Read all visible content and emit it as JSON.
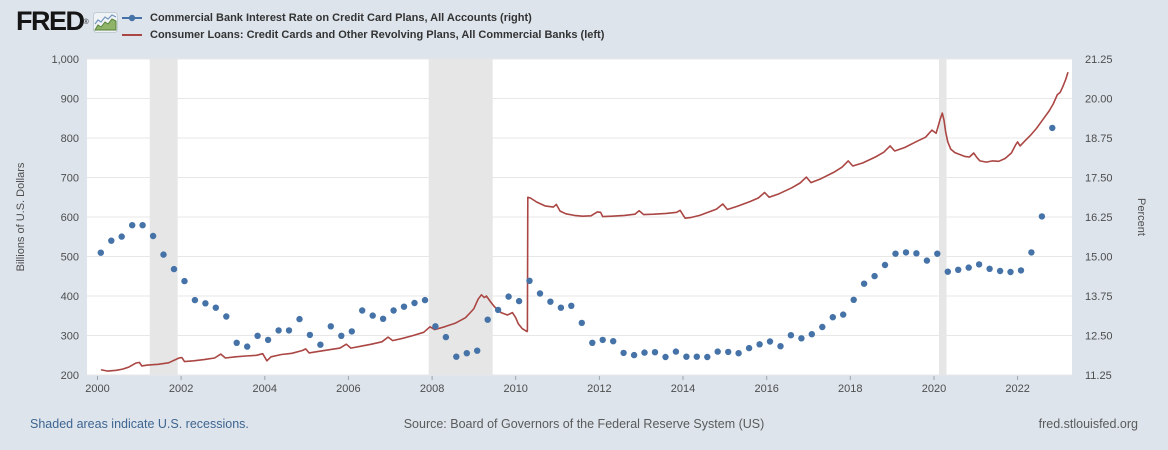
{
  "header": {
    "logo_text": "FRED",
    "logo_reg": "®",
    "legend": [
      {
        "label": "Commercial Bank Interest Rate on Credit Card Plans, All Accounts (right)",
        "marker": "line-dot",
        "color": "#4572a7"
      },
      {
        "label": "Consumer Loans: Credit Cards and Other Revolving Plans, All Commercial Banks (left)",
        "marker": "line",
        "color": "#aa4643"
      }
    ]
  },
  "footer": {
    "recession_note": "Shaded areas indicate U.S. recessions.",
    "source": "Source: Board of Governors of the Federal Reserve System (US)",
    "site": "fred.stlouisfed.org"
  },
  "colors": {
    "background": "#dde4ec",
    "plot_background": "#ffffff",
    "gridline": "#e7e7e7",
    "recession_band": "#e6e6e6",
    "blue_series": "#4572a7",
    "red_series": "#aa4643",
    "axis_text": "#4d4d4d",
    "x_tick_mark": "#9aa5b1"
  },
  "chart_data": {
    "type": "line",
    "title": "",
    "grid": "horizontal-only",
    "legend_position": "top-left",
    "x_axis": {
      "min": 1999.75,
      "max": 2023.3,
      "tick_years": [
        2000,
        2002,
        2004,
        2006,
        2008,
        2010,
        2012,
        2014,
        2016,
        2018,
        2020,
        2022
      ]
    },
    "left_axis": {
      "title": "Billions of U.S. Dollars",
      "min": 200,
      "max": 1000,
      "tick_values": [
        200,
        300,
        400,
        500,
        600,
        700,
        800,
        900,
        1000
      ],
      "tick_labels": [
        "200",
        "300",
        "400",
        "500",
        "600",
        "700",
        "800",
        "900",
        "1,000"
      ]
    },
    "right_axis": {
      "title": "Percent",
      "min": 11.25,
      "max": 21.25,
      "tick_values": [
        11.25,
        12.5,
        13.75,
        15.0,
        16.25,
        17.5,
        18.75,
        20.0,
        21.25
      ],
      "tick_labels": [
        "11.25",
        "12.50",
        "13.75",
        "15.00",
        "16.25",
        "17.50",
        "18.75",
        "20.00",
        "21.25"
      ]
    },
    "recessions": [
      [
        2001.25,
        2001.92
      ],
      [
        2007.92,
        2009.45
      ],
      [
        2020.12,
        2020.3
      ]
    ],
    "series": [
      {
        "name": "Commercial Bank Interest Rate on Credit Card Plans, All Accounts",
        "axis": "right",
        "style": "scatter",
        "color": "#4572a7",
        "marker_radius": 3.2,
        "points": [
          [
            2000.08,
            15.12
          ],
          [
            2000.33,
            15.5
          ],
          [
            2000.58,
            15.63
          ],
          [
            2000.83,
            15.99
          ],
          [
            2001.08,
            15.99
          ],
          [
            2001.33,
            15.65
          ],
          [
            2001.58,
            15.06
          ],
          [
            2001.83,
            14.6
          ],
          [
            2002.08,
            14.22
          ],
          [
            2002.33,
            13.62
          ],
          [
            2002.58,
            13.52
          ],
          [
            2002.83,
            13.38
          ],
          [
            2003.08,
            13.1
          ],
          [
            2003.33,
            12.27
          ],
          [
            2003.58,
            12.15
          ],
          [
            2003.83,
            12.49
          ],
          [
            2004.08,
            12.36
          ],
          [
            2004.33,
            12.66
          ],
          [
            2004.58,
            12.66
          ],
          [
            2004.83,
            13.02
          ],
          [
            2005.08,
            12.52
          ],
          [
            2005.33,
            12.21
          ],
          [
            2005.58,
            12.79
          ],
          [
            2005.83,
            12.49
          ],
          [
            2006.08,
            12.63
          ],
          [
            2006.33,
            13.29
          ],
          [
            2006.58,
            13.13
          ],
          [
            2006.83,
            13.03
          ],
          [
            2007.08,
            13.29
          ],
          [
            2007.33,
            13.41
          ],
          [
            2007.58,
            13.53
          ],
          [
            2007.83,
            13.62
          ],
          [
            2008.08,
            12.79
          ],
          [
            2008.33,
            12.45
          ],
          [
            2008.58,
            11.83
          ],
          [
            2008.83,
            11.94
          ],
          [
            2009.08,
            12.02
          ],
          [
            2009.33,
            13.0
          ],
          [
            2009.58,
            13.31
          ],
          [
            2009.83,
            13.73
          ],
          [
            2010.08,
            13.59
          ],
          [
            2010.33,
            14.23
          ],
          [
            2010.58,
            13.83
          ],
          [
            2010.83,
            13.57
          ],
          [
            2011.08,
            13.38
          ],
          [
            2011.33,
            13.44
          ],
          [
            2011.58,
            12.9
          ],
          [
            2011.83,
            12.27
          ],
          [
            2012.08,
            12.36
          ],
          [
            2012.33,
            12.32
          ],
          [
            2012.58,
            11.95
          ],
          [
            2012.83,
            11.88
          ],
          [
            2013.08,
            11.96
          ],
          [
            2013.33,
            11.97
          ],
          [
            2013.58,
            11.82
          ],
          [
            2013.83,
            11.99
          ],
          [
            2014.08,
            11.83
          ],
          [
            2014.33,
            11.83
          ],
          [
            2014.58,
            11.82
          ],
          [
            2014.83,
            11.99
          ],
          [
            2015.08,
            11.98
          ],
          [
            2015.33,
            11.94
          ],
          [
            2015.58,
            12.1
          ],
          [
            2015.83,
            12.22
          ],
          [
            2016.08,
            12.31
          ],
          [
            2016.33,
            12.16
          ],
          [
            2016.58,
            12.51
          ],
          [
            2016.83,
            12.41
          ],
          [
            2017.08,
            12.54
          ],
          [
            2017.33,
            12.77
          ],
          [
            2017.58,
            13.08
          ],
          [
            2017.83,
            13.16
          ],
          [
            2018.08,
            13.63
          ],
          [
            2018.33,
            14.14
          ],
          [
            2018.58,
            14.38
          ],
          [
            2018.83,
            14.73
          ],
          [
            2019.08,
            15.09
          ],
          [
            2019.33,
            15.13
          ],
          [
            2019.58,
            15.1
          ],
          [
            2019.83,
            14.87
          ],
          [
            2020.08,
            15.09
          ],
          [
            2020.33,
            14.52
          ],
          [
            2020.58,
            14.58
          ],
          [
            2020.83,
            14.65
          ],
          [
            2021.08,
            14.75
          ],
          [
            2021.33,
            14.61
          ],
          [
            2021.58,
            14.54
          ],
          [
            2021.83,
            14.51
          ],
          [
            2022.08,
            14.56
          ],
          [
            2022.33,
            15.13
          ],
          [
            2022.58,
            16.27
          ],
          [
            2022.83,
            19.07
          ]
        ]
      },
      {
        "name": "Consumer Loans: Credit Cards and Other Revolving Plans, All Commercial Banks",
        "axis": "left",
        "style": "line",
        "color": "#aa4643",
        "line_width": 1.6,
        "points": [
          [
            2000.1,
            213
          ],
          [
            2000.25,
            210
          ],
          [
            2000.45,
            212
          ],
          [
            2000.6,
            215
          ],
          [
            2000.75,
            220
          ],
          [
            2000.92,
            230
          ],
          [
            2001.0,
            232
          ],
          [
            2001.06,
            223
          ],
          [
            2001.2,
            225
          ],
          [
            2001.45,
            227
          ],
          [
            2001.7,
            231
          ],
          [
            2001.95,
            243
          ],
          [
            2002.02,
            244
          ],
          [
            2002.08,
            234
          ],
          [
            2002.3,
            236
          ],
          [
            2002.55,
            239
          ],
          [
            2002.8,
            243
          ],
          [
            2002.95,
            253
          ],
          [
            2003.06,
            243
          ],
          [
            2003.3,
            246
          ],
          [
            2003.55,
            248
          ],
          [
            2003.8,
            250
          ],
          [
            2003.95,
            254
          ],
          [
            2004.05,
            236
          ],
          [
            2004.15,
            246
          ],
          [
            2004.4,
            252
          ],
          [
            2004.65,
            255
          ],
          [
            2004.9,
            262
          ],
          [
            2004.98,
            266
          ],
          [
            2005.06,
            256
          ],
          [
            2005.3,
            260
          ],
          [
            2005.55,
            264
          ],
          [
            2005.8,
            268
          ],
          [
            2005.95,
            278
          ],
          [
            2006.06,
            268
          ],
          [
            2006.3,
            273
          ],
          [
            2006.55,
            278
          ],
          [
            2006.8,
            284
          ],
          [
            2006.95,
            296
          ],
          [
            2007.06,
            287
          ],
          [
            2007.3,
            293
          ],
          [
            2007.55,
            300
          ],
          [
            2007.8,
            308
          ],
          [
            2007.95,
            322
          ],
          [
            2008.06,
            315
          ],
          [
            2008.3,
            322
          ],
          [
            2008.55,
            331
          ],
          [
            2008.8,
            345
          ],
          [
            2008.95,
            362
          ],
          [
            2009.0,
            368
          ],
          [
            2009.1,
            392
          ],
          [
            2009.18,
            403
          ],
          [
            2009.25,
            396
          ],
          [
            2009.3,
            400
          ],
          [
            2009.4,
            385
          ],
          [
            2009.5,
            372
          ],
          [
            2009.65,
            358
          ],
          [
            2009.8,
            352
          ],
          [
            2009.92,
            358
          ],
          [
            2010.0,
            345
          ],
          [
            2010.06,
            330
          ],
          [
            2010.15,
            318
          ],
          [
            2010.27,
            310
          ],
          [
            2010.28,
            312
          ],
          [
            2010.29,
            650
          ],
          [
            2010.35,
            648
          ],
          [
            2010.5,
            638
          ],
          [
            2010.7,
            628
          ],
          [
            2010.9,
            625
          ],
          [
            2010.97,
            632
          ],
          [
            2011.06,
            615
          ],
          [
            2011.2,
            608
          ],
          [
            2011.4,
            604
          ],
          [
            2011.6,
            602
          ],
          [
            2011.8,
            603
          ],
          [
            2011.95,
            613
          ],
          [
            2012.03,
            612
          ],
          [
            2012.08,
            601
          ],
          [
            2012.3,
            602
          ],
          [
            2012.6,
            604
          ],
          [
            2012.85,
            607
          ],
          [
            2012.95,
            616
          ],
          [
            2013.06,
            606
          ],
          [
            2013.3,
            607
          ],
          [
            2013.6,
            609
          ],
          [
            2013.85,
            612
          ],
          [
            2013.93,
            617
          ],
          [
            2014.05,
            597
          ],
          [
            2014.2,
            599
          ],
          [
            2014.4,
            604
          ],
          [
            2014.6,
            612
          ],
          [
            2014.8,
            620
          ],
          [
            2014.95,
            633
          ],
          [
            2015.06,
            619
          ],
          [
            2015.3,
            627
          ],
          [
            2015.6,
            639
          ],
          [
            2015.8,
            648
          ],
          [
            2015.95,
            662
          ],
          [
            2016.06,
            650
          ],
          [
            2016.3,
            659
          ],
          [
            2016.6,
            674
          ],
          [
            2016.8,
            686
          ],
          [
            2016.95,
            701
          ],
          [
            2017.06,
            687
          ],
          [
            2017.3,
            697
          ],
          [
            2017.6,
            713
          ],
          [
            2017.8,
            726
          ],
          [
            2017.95,
            742
          ],
          [
            2018.06,
            729
          ],
          [
            2018.3,
            737
          ],
          [
            2018.6,
            752
          ],
          [
            2018.8,
            764
          ],
          [
            2018.95,
            780
          ],
          [
            2019.06,
            767
          ],
          [
            2019.3,
            776
          ],
          [
            2019.6,
            792
          ],
          [
            2019.8,
            802
          ],
          [
            2019.95,
            820
          ],
          [
            2020.05,
            812
          ],
          [
            2020.1,
            830
          ],
          [
            2020.15,
            848
          ],
          [
            2020.2,
            863
          ],
          [
            2020.24,
            845
          ],
          [
            2020.28,
            815
          ],
          [
            2020.33,
            790
          ],
          [
            2020.4,
            772
          ],
          [
            2020.5,
            763
          ],
          [
            2020.6,
            759
          ],
          [
            2020.75,
            753
          ],
          [
            2020.85,
            752
          ],
          [
            2020.95,
            762
          ],
          [
            2021.03,
            750
          ],
          [
            2021.1,
            742
          ],
          [
            2021.25,
            739
          ],
          [
            2021.4,
            742
          ],
          [
            2021.55,
            741
          ],
          [
            2021.7,
            748
          ],
          [
            2021.85,
            762
          ],
          [
            2021.95,
            782
          ],
          [
            2022.0,
            790
          ],
          [
            2022.06,
            780
          ],
          [
            2022.15,
            790
          ],
          [
            2022.3,
            806
          ],
          [
            2022.45,
            824
          ],
          [
            2022.6,
            846
          ],
          [
            2022.75,
            868
          ],
          [
            2022.85,
            886
          ],
          [
            2022.95,
            910
          ],
          [
            2023.02,
            916
          ],
          [
            2023.08,
            930
          ],
          [
            2023.15,
            948
          ],
          [
            2023.2,
            965
          ]
        ]
      }
    ]
  }
}
